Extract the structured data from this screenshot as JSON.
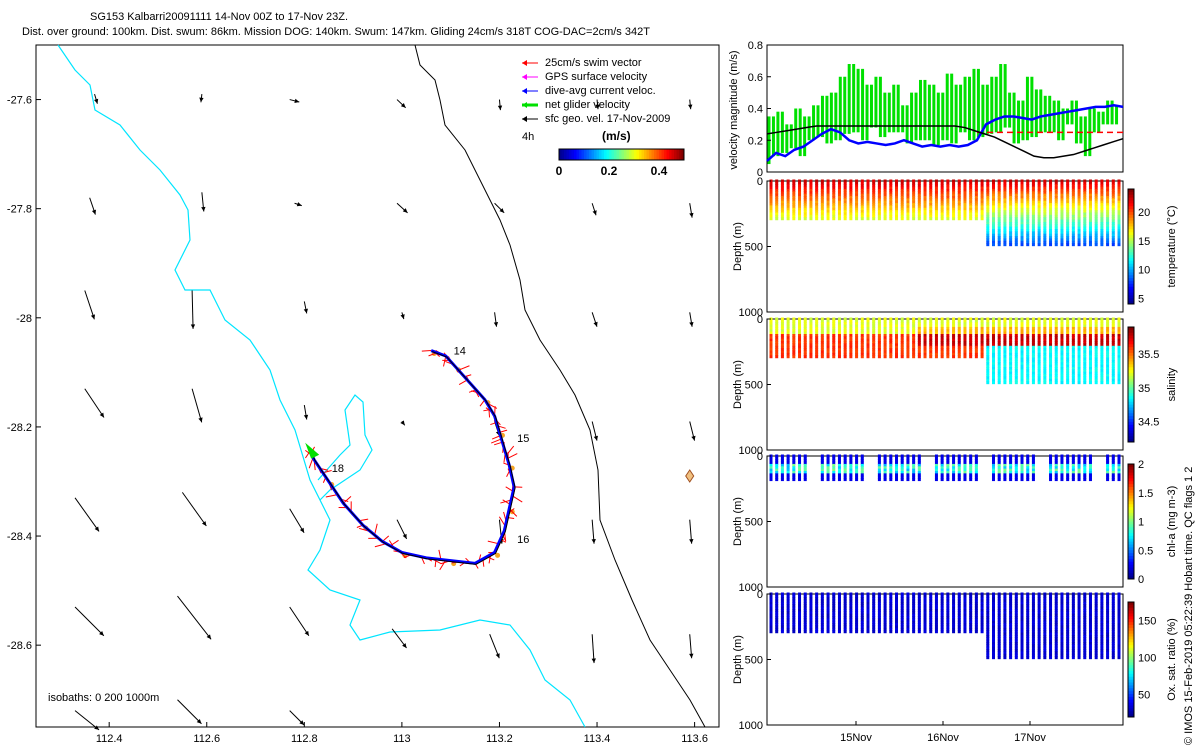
{
  "header": {
    "title": "SG153 Kalbarri20091111 14-Nov 00Z to 17-Nov 23Z.",
    "subtitle": "Dist. over ground: 100km. Dist. swum: 86km. Mission DOG: 140km. Swum: 147km. Gliding 24cm/s 318T COG-DAC=2cm/s 342T"
  },
  "map": {
    "xlim": [
      112.25,
      113.65
    ],
    "ylim": [
      -28.75,
      -27.5
    ],
    "xticks": [
      112.4,
      112.6,
      112.8,
      113,
      113.2,
      113.4,
      113.6
    ],
    "yticks": [
      -27.6,
      -27.8,
      -28,
      -28.2,
      -28.4,
      -28.6
    ],
    "isobath_note": "isobaths: 0   200  1000m",
    "isobath_colors": {
      "coast": "#000000",
      "shelf": "#00e5ff",
      "deep": "#000000"
    },
    "legend": [
      {
        "label": "25cm/s swim vector",
        "color": "#ff0000"
      },
      {
        "label": "GPS surface velocity",
        "color": "#ff00ff"
      },
      {
        "label": "dive-avg current veloc.",
        "color": "#0000ff"
      },
      {
        "label": "net glider velocity",
        "color": "#00e000"
      },
      {
        "label": "sfc geo. vel. 17-Nov-2009",
        "color": "#000000"
      }
    ],
    "legend_scale_label": "4h",
    "colorbar": {
      "title": "(m/s)",
      "ticks": [
        "0",
        "0.2",
        "0.4"
      ],
      "range": [
        0,
        0.5
      ]
    },
    "day_labels": [
      {
        "text": "14",
        "lon": 113.1,
        "lat": -28.06
      },
      {
        "text": "15",
        "lon": 113.23,
        "lat": -28.22
      },
      {
        "text": "16",
        "lon": 113.23,
        "lat": -28.405
      },
      {
        "text": "18",
        "lon": 112.85,
        "lat": -28.275
      }
    ],
    "track": [
      [
        113.06,
        -28.06
      ],
      [
        113.09,
        -28.07
      ],
      [
        113.11,
        -28.09
      ],
      [
        113.14,
        -28.12
      ],
      [
        113.17,
        -28.15
      ],
      [
        113.19,
        -28.18
      ],
      [
        113.2,
        -28.21
      ],
      [
        113.21,
        -28.24
      ],
      [
        113.22,
        -28.27
      ],
      [
        113.23,
        -28.31
      ],
      [
        113.22,
        -28.35
      ],
      [
        113.21,
        -28.39
      ],
      [
        113.19,
        -28.43
      ],
      [
        113.15,
        -28.45
      ],
      [
        113.1,
        -28.445
      ],
      [
        113.05,
        -28.44
      ],
      [
        113,
        -28.43
      ],
      [
        112.96,
        -28.41
      ],
      [
        112.92,
        -28.38
      ],
      [
        112.88,
        -28.34
      ],
      [
        112.85,
        -28.3
      ],
      [
        112.82,
        -28.26
      ],
      [
        112.81,
        -28.24
      ]
    ],
    "endpoint": {
      "lon": 113.59,
      "lat": -28.29
    },
    "geo_vectors": [
      [
        112.37,
        -27.59,
        0.006,
        -0.02
      ],
      [
        112.59,
        -27.59,
        -0.002,
        -0.017
      ],
      [
        112.77,
        -27.6,
        0.02,
        -0.005
      ],
      [
        112.99,
        -27.6,
        0.018,
        -0.017
      ],
      [
        113.2,
        -27.6,
        0.002,
        -0.022
      ],
      [
        113.4,
        -27.6,
        0.002,
        -0.02
      ],
      [
        113.59,
        -27.6,
        0.002,
        -0.02
      ],
      [
        112.36,
        -27.78,
        0.012,
        -0.035
      ],
      [
        112.59,
        -27.77,
        0.004,
        -0.04
      ],
      [
        112.78,
        -27.79,
        0.015,
        -0.005
      ],
      [
        112.99,
        -27.79,
        0.022,
        -0.02
      ],
      [
        113.19,
        -27.79,
        0.02,
        -0.02
      ],
      [
        113.39,
        -27.79,
        0.008,
        -0.025
      ],
      [
        113.59,
        -27.79,
        0.005,
        -0.03
      ],
      [
        112.35,
        -27.95,
        0.02,
        -0.06
      ],
      [
        112.57,
        -27.95,
        0.002,
        -0.08
      ],
      [
        112.8,
        -27.97,
        0.005,
        -0.025
      ],
      [
        113.0,
        -27.99,
        0.004,
        -0.014
      ],
      [
        113.19,
        -27.99,
        0.004,
        -0.03
      ],
      [
        113.39,
        -27.99,
        0.01,
        -0.03
      ],
      [
        113.59,
        -27.99,
        0.005,
        -0.03
      ],
      [
        112.35,
        -28.13,
        0.04,
        -0.06
      ],
      [
        112.57,
        -28.13,
        0.02,
        -0.07
      ],
      [
        112.8,
        -28.16,
        0.005,
        -0.03
      ],
      [
        113.0,
        -28.19,
        0.006,
        -0.008
      ],
      [
        113.19,
        -28.19,
        0.01,
        -0.03
      ],
      [
        113.39,
        -28.19,
        0.01,
        -0.04
      ],
      [
        113.59,
        -28.19,
        0.01,
        -0.04
      ],
      [
        112.33,
        -28.33,
        0.05,
        -0.07
      ],
      [
        112.55,
        -28.32,
        0.05,
        -0.07
      ],
      [
        112.77,
        -28.35,
        0.03,
        -0.05
      ],
      [
        112.99,
        -28.37,
        0.02,
        -0.04
      ],
      [
        113.2,
        -28.37,
        0.005,
        -0.05
      ],
      [
        113.39,
        -28.37,
        0.004,
        -0.05
      ],
      [
        113.59,
        -28.37,
        0.004,
        -0.05
      ],
      [
        112.33,
        -28.53,
        0.06,
        -0.06
      ],
      [
        112.54,
        -28.51,
        0.07,
        -0.09
      ],
      [
        112.77,
        -28.53,
        0.04,
        -0.06
      ],
      [
        112.98,
        -28.57,
        0.03,
        -0.04
      ],
      [
        113.18,
        -28.58,
        0.02,
        -0.05
      ],
      [
        113.39,
        -28.58,
        0.004,
        -0.06
      ],
      [
        113.59,
        -28.58,
        0.004,
        -0.05
      ],
      [
        112.33,
        -28.72,
        0.05,
        -0.04
      ],
      [
        112.54,
        -28.7,
        0.05,
        -0.05
      ],
      [
        112.77,
        -28.72,
        0.03,
        -0.03
      ]
    ]
  },
  "velocity_panel": {
    "ylabel": "velocity magnitude (m/s)",
    "yticks": [
      "0",
      "0.2",
      "0.4",
      "0.6",
      "0.8"
    ],
    "ylim": [
      0,
      0.8
    ],
    "xlim_days": [
      14,
      18
    ],
    "reference_line": 0.25,
    "net_glider_bars": [
      0.05,
      0.35,
      0.1,
      0.38,
      0.12,
      0.3,
      0.15,
      0.4,
      0.1,
      0.35,
      0.2,
      0.42,
      0.22,
      0.48,
      0.18,
      0.5,
      0.2,
      0.6,
      0.24,
      0.68,
      0.25,
      0.65,
      0.2,
      0.55,
      0.28,
      0.6,
      0.22,
      0.5,
      0.25,
      0.55,
      0.25,
      0.42,
      0.18,
      0.5,
      0.2,
      0.58,
      0.2,
      0.55,
      0.17,
      0.5,
      0.2,
      0.62,
      0.18,
      0.55,
      0.25,
      0.6,
      0.2,
      0.65,
      0.22,
      0.55,
      0.24,
      0.6,
      0.25,
      0.68,
      0.28,
      0.5,
      0.18,
      0.45,
      0.2,
      0.6,
      0.22,
      0.52,
      0.25,
      0.48,
      0.25,
      0.45,
      0.2,
      0.4,
      0.3,
      0.45,
      0.18,
      0.35,
      0.1,
      0.4,
      0.25,
      0.38,
      0.3,
      0.45,
      0.3,
      0.42
    ],
    "dac_series": [
      0.07,
      0.12,
      0.1,
      0.14,
      0.16,
      0.2,
      0.24,
      0.27,
      0.25,
      0.2,
      0.18,
      0.19,
      0.18,
      0.17,
      0.18,
      0.2,
      0.18,
      0.16,
      0.17,
      0.16,
      0.17,
      0.16,
      0.17,
      0.2,
      0.3,
      0.33,
      0.35,
      0.35,
      0.34,
      0.33,
      0.35,
      0.36,
      0.37,
      0.38,
      0.39,
      0.4,
      0.41,
      0.41,
      0.42,
      0.41
    ],
    "geo_series": [
      0.24,
      0.25,
      0.26,
      0.27,
      0.28,
      0.29,
      0.29,
      0.29,
      0.29,
      0.29,
      0.29,
      0.29,
      0.29,
      0.29,
      0.29,
      0.29,
      0.29,
      0.29,
      0.29,
      0.29,
      0.28,
      0.26,
      0.24,
      0.22,
      0.19,
      0.16,
      0.13,
      0.1,
      0.09,
      0.09,
      0.1,
      0.11,
      0.13,
      0.15,
      0.17,
      0.19,
      0.21
    ]
  },
  "depth_panels": [
    {
      "name": "temperature",
      "cb_label": "temperature (°C)",
      "cb_ticks": [
        "5",
        "10",
        "15",
        "20"
      ],
      "cb_range": [
        4,
        24
      ],
      "ylabel": "Depth (m)",
      "yticks": [
        "0",
        "500",
        "1000"
      ]
    },
    {
      "name": "salinity",
      "cb_label": "salinity",
      "cb_ticks": [
        "34.5",
        "35",
        "35.5"
      ],
      "cb_range": [
        34.2,
        35.9
      ],
      "ylabel": "Depth (m)",
      "yticks": [
        "0",
        "500",
        "1000"
      ]
    },
    {
      "name": "chla",
      "cb_label": "chl-a (mg m-3)",
      "cb_ticks": [
        "0",
        "0.5",
        "1",
        "1.5",
        "2"
      ],
      "cb_range": [
        0,
        2
      ],
      "ylabel": "Depth (m)",
      "yticks": [
        "0",
        "500",
        "1000"
      ]
    },
    {
      "name": "oxygen",
      "cb_label": "Ox. sat. ratio (%)",
      "cb_ticks": [
        "50",
        "100",
        "150"
      ],
      "cb_range": [
        20,
        175
      ],
      "ylabel": "Depth (m)",
      "yticks": [
        "0",
        "500",
        "1000"
      ]
    }
  ],
  "time_axis": {
    "ticks": [
      "15Nov",
      "16Nov",
      "17Nov"
    ]
  },
  "side_note": "© IMOS 15-Feb-2019 05:22:39 Hobart time. QC flags 1 2"
}
